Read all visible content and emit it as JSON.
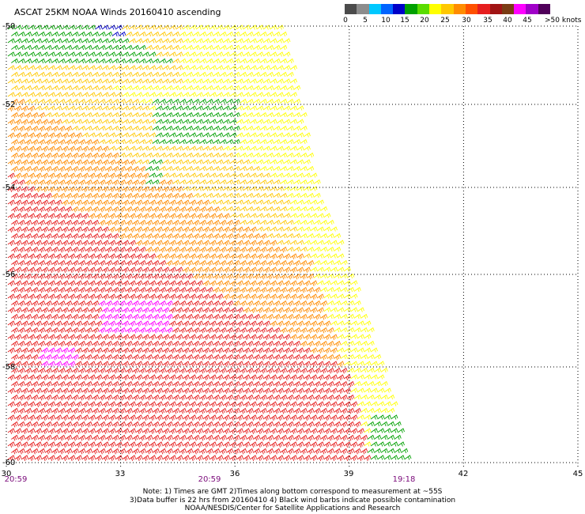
{
  "title": "ASCAT 25KM NOAA Winds 20160410 ascending",
  "colorbar": {
    "colors": [
      "#4b4b4b",
      "#8c8c8c",
      "#00c8ff",
      "#0064ff",
      "#0000c8",
      "#00a000",
      "#5adc00",
      "#ffff00",
      "#ffc800",
      "#ff8c00",
      "#ff5000",
      "#e61e1e",
      "#a01414",
      "#7a3c14",
      "#ff00ff",
      "#a000c8",
      "#50005a"
    ],
    "labels": [
      "0",
      "5",
      "10",
      "15",
      "20",
      "25",
      "30",
      "35",
      "40",
      "45",
      ">50 knots"
    ]
  },
  "map": {
    "lat_labels": [
      "-50",
      "-52",
      "-54",
      "-56",
      "-58",
      "-60"
    ],
    "lon_labels": [
      "30",
      "33",
      "36",
      "39",
      "42",
      "45"
    ],
    "time_labels": [
      "20:59",
      "20:59",
      "19:18"
    ],
    "lon_range": [
      30,
      45
    ],
    "lat_range": [
      -60,
      -50
    ],
    "swath_edge": [
      [
        37.2,
        -50
      ],
      [
        38.1,
        -54
      ],
      [
        39.0,
        -56
      ],
      [
        40.0,
        -58.5
      ],
      [
        40.5,
        -60
      ]
    ],
    "wind_regions": [
      {
        "speed_kt": 12,
        "color": "#0000c8",
        "note": "small patch near top edge"
      },
      {
        "speed_kt": 18,
        "color": "#00a000",
        "note": "northwest corner and patch near -52S 34-36E"
      },
      {
        "speed_kt": 22,
        "color": "#ffff00",
        "note": "northern swath and eastern edge"
      },
      {
        "speed_kt": 27,
        "color": "#ffc800",
        "note": "central swath"
      },
      {
        "speed_kt": 32,
        "color": "#ff8c00",
        "note": "southwest region"
      },
      {
        "speed_kt": 36,
        "color": "#e61e1e",
        "note": "scattered near -56 to -58S, 30-33E"
      },
      {
        "speed_kt": 42,
        "color": "#ff00ff",
        "note": "small patch near -57S 33E"
      },
      {
        "speed_kt": 18,
        "color": "#00a000",
        "note": "southeast corner near -59S 40E"
      }
    ]
  },
  "notes": [
    "Note: 1) Times are GMT 2)Times along bottom correspond to measurement at ~55S",
    "3)Data buffer is 22 hrs from 20160410 4) Black wind barbs indicate possible contamination",
    "NOAA/NESDIS/Center for Satellite Applications and Research"
  ]
}
